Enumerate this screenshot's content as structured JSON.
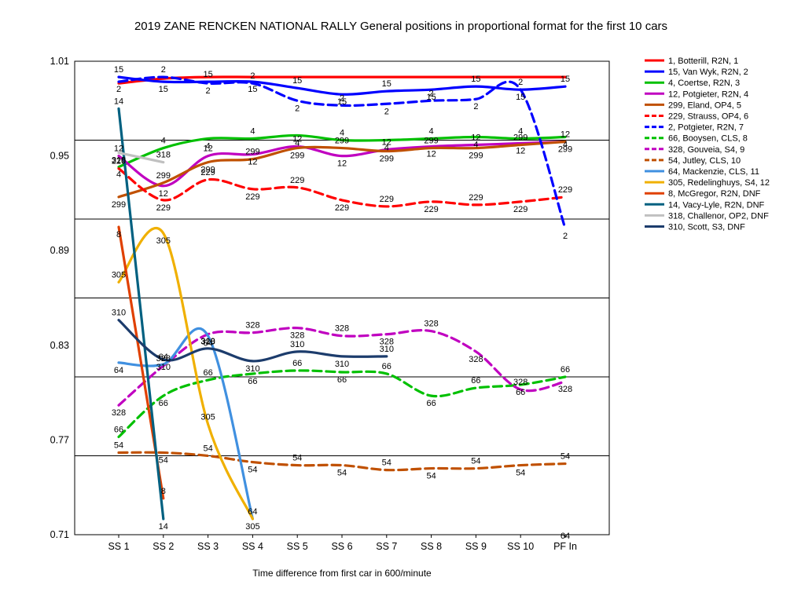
{
  "chart_data": {
    "type": "line",
    "title": "2019 ZANE RENCKEN NATIONAL RALLY  General positions in proportional format for the first 10 cars",
    "xlabel": "Time difference from first car in 600/minute",
    "ylabel": "",
    "categories": [
      "SS 1",
      "SS 2",
      "SS 3",
      "SS 4",
      "SS 5",
      "SS 6",
      "SS 7",
      "SS 8",
      "SS 9",
      "SS 10",
      "PF In"
    ],
    "y_ticks": [
      "0.71",
      "0.77",
      "0.83",
      "0.89",
      "0.95",
      "1.01"
    ],
    "ylim": [
      0.71,
      1.01
    ],
    "grid": "horizontal at 0.71, 0.76, 0.81, 0.86, 0.91, 0.96, 1.01",
    "legend_position": "right",
    "series": [
      {
        "name": "1, Botterill, R2N, 1",
        "label": "",
        "color": "#ff0000",
        "dash": false,
        "values": [
          0.996,
          0.999,
          1.0,
          1.0,
          1.0,
          1.0,
          1.0,
          1.0,
          1.0,
          1.0,
          1.0
        ]
      },
      {
        "name": "15, Van Wyk, R2N, 2",
        "label": "15",
        "color": "#0000ff",
        "dash": false,
        "values": [
          1.0,
          0.997,
          0.997,
          0.997,
          0.993,
          0.989,
          0.991,
          0.992,
          0.994,
          0.992,
          0.994
        ]
      },
      {
        "name": "4, Coertse, R2N, 3",
        "label": "4",
        "color": "#00c000",
        "dash": false,
        "values": [
          0.943,
          0.955,
          0.961,
          0.961,
          0.963,
          0.96,
          0.96,
          0.961,
          0.962,
          0.961,
          0.962
        ]
      },
      {
        "name": "12, Potgieter, R2N, 4",
        "label": "12",
        "color": "#c000c0",
        "dash": false,
        "values": [
          0.95,
          0.931,
          0.95,
          0.951,
          0.956,
          0.95,
          0.954,
          0.956,
          0.957,
          0.958,
          0.959
        ]
      },
      {
        "name": "299, Eland, OP4, 5",
        "label": "299",
        "color": "#c05000",
        "dash": false,
        "values": [
          0.924,
          0.933,
          0.946,
          0.948,
          0.955,
          0.955,
          0.953,
          0.955,
          0.955,
          0.957,
          0.959
        ]
      },
      {
        "name": "229, Strauss, OP4, 6",
        "label": "229",
        "color": "#ff0000",
        "dash": true,
        "values": [
          0.942,
          0.922,
          0.935,
          0.929,
          0.93,
          0.922,
          0.918,
          0.921,
          0.919,
          0.921,
          0.924
        ]
      },
      {
        "name": "2, Potgieter, R2N, 7",
        "label": "2",
        "color": "#0000ff",
        "dash": true,
        "values": [
          0.997,
          1.0,
          0.996,
          0.996,
          0.985,
          0.982,
          0.983,
          0.985,
          0.986,
          0.992,
          0.904
        ]
      },
      {
        "name": "66, Booysen, CLS, 8",
        "label": "66",
        "color": "#00c000",
        "dash": true,
        "values": [
          0.772,
          0.798,
          0.808,
          0.812,
          0.814,
          0.813,
          0.812,
          0.798,
          0.803,
          0.805,
          0.81
        ]
      },
      {
        "name": "328, Gouveia, S4, 9",
        "label": "328",
        "color": "#c000c0",
        "dash": true,
        "values": [
          0.792,
          0.817,
          0.837,
          0.838,
          0.841,
          0.836,
          0.837,
          0.839,
          0.826,
          0.802,
          0.807
        ]
      },
      {
        "name": "54, Jutley, CLS, 10",
        "label": "54",
        "color": "#c05000",
        "dash": true,
        "values": [
          0.762,
          0.762,
          0.76,
          0.756,
          0.754,
          0.754,
          0.751,
          0.752,
          0.752,
          0.754,
          0.755
        ]
      },
      {
        "name": "64, Mackenzie, CLS, 11",
        "label": "64",
        "color": "#4090e0",
        "dash": false,
        "values": [
          0.819,
          0.818,
          0.836,
          0.72,
          null,
          null,
          null,
          null,
          null,
          null,
          0.714
        ]
      },
      {
        "name": "305, Redelinghuys, S4, 12",
        "label": "305",
        "color": "#f0b000",
        "dash": false,
        "values": [
          0.87,
          0.901,
          0.78,
          0.72,
          null,
          null,
          null,
          null,
          null,
          null,
          null
        ]
      },
      {
        "name": "8, McGregor, R2N, DNF",
        "label": "8",
        "color": "#e04000",
        "dash": false,
        "values": [
          0.905,
          0.733,
          null,
          null,
          null,
          null,
          null,
          null,
          null,
          null,
          null
        ]
      },
      {
        "name": "14, Vacy-Lyle, R2N, DNF",
        "label": "14",
        "color": "#006080",
        "dash": false,
        "values": [
          0.98,
          0.72,
          null,
          null,
          null,
          null,
          null,
          null,
          null,
          null,
          null
        ]
      },
      {
        "name": "318, Challenor, OP2, DNF",
        "label": "318",
        "color": "#c0c0c0",
        "dash": false,
        "values": [
          0.952,
          0.946,
          null,
          null,
          null,
          null,
          null,
          null,
          null,
          null,
          null
        ]
      },
      {
        "name": "310, Scott, S3, DNF",
        "label": "310",
        "color": "#1c3c6c",
        "dash": false,
        "values": [
          0.846,
          0.821,
          0.828,
          0.82,
          0.826,
          0.823,
          0.823,
          null,
          null,
          null,
          null
        ]
      }
    ]
  }
}
